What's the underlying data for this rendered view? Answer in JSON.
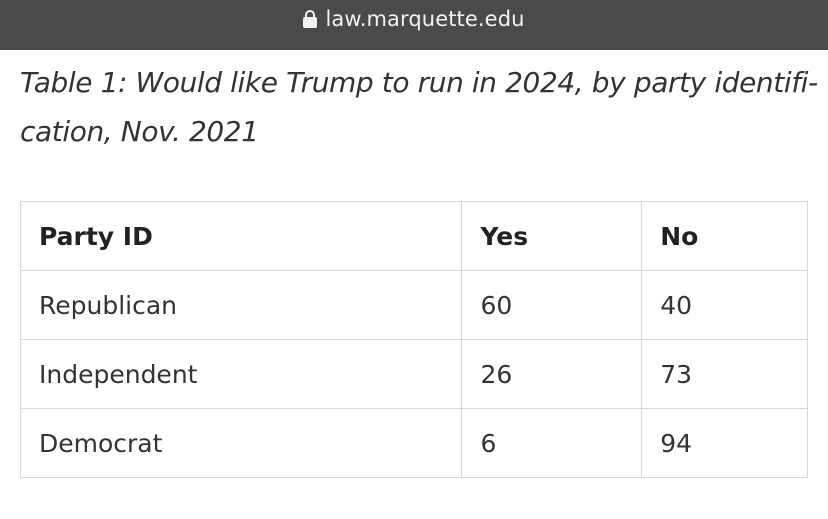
{
  "url_bar": {
    "icon": "lock-icon",
    "url": "law.marquette.edu"
  },
  "caption": {
    "line1": "Table 1: Would like Trump to run in 2024, by party identifi-",
    "line2": "cation, Nov. 2021"
  },
  "table": {
    "headers": [
      "Party ID",
      "Yes",
      "No"
    ],
    "rows": [
      [
        "Republican",
        "60",
        "40"
      ],
      [
        "Independent",
        "26",
        "73"
      ],
      [
        "Democrat",
        "6",
        "94"
      ]
    ]
  }
}
